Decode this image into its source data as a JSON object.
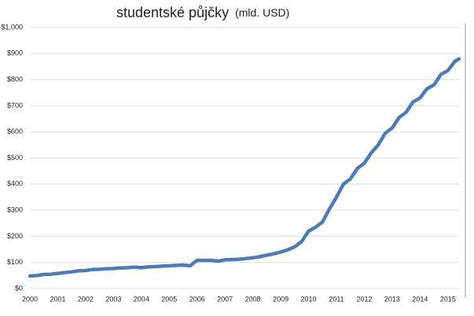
{
  "chart_data": {
    "type": "line",
    "title": "studentské půjčky",
    "subtitle": "(mld. USD)",
    "x": [
      2000,
      2000.25,
      2000.5,
      2000.75,
      2001,
      2001.25,
      2001.5,
      2001.75,
      2002,
      2002.25,
      2002.5,
      2002.75,
      2003,
      2003.25,
      2003.5,
      2003.75,
      2004,
      2004.25,
      2004.5,
      2004.75,
      2005,
      2005.25,
      2005.5,
      2005.75,
      2006,
      2006.25,
      2006.5,
      2006.75,
      2007,
      2007.25,
      2007.5,
      2007.75,
      2008,
      2008.25,
      2008.5,
      2008.75,
      2009,
      2009.25,
      2009.5,
      2009.75,
      2010,
      2010.25,
      2010.5,
      2010.75,
      2011,
      2011.25,
      2011.5,
      2011.75,
      2012,
      2012.25,
      2012.5,
      2012.75,
      2013,
      2013.25,
      2013.5,
      2013.75,
      2014,
      2014.25,
      2014.5,
      2014.75,
      2015,
      2015.25,
      2015.4
    ],
    "values": [
      48,
      50,
      54,
      55,
      58,
      61,
      64,
      68,
      69,
      73,
      74,
      76,
      77,
      79,
      80,
      82,
      80,
      83,
      84,
      86,
      87,
      89,
      90,
      87,
      108,
      108,
      108,
      105,
      110,
      111,
      112,
      115,
      118,
      122,
      128,
      133,
      140,
      148,
      160,
      180,
      220,
      235,
      255,
      305,
      350,
      400,
      420,
      460,
      480,
      520,
      550,
      595,
      615,
      655,
      675,
      715,
      730,
      765,
      780,
      820,
      835,
      870,
      880
    ],
    "color": "#4f7bb3",
    "xlim": [
      2000,
      2015.4
    ],
    "xticks": [
      2000,
      2001,
      2002,
      2003,
      2004,
      2005,
      2006,
      2007,
      2008,
      2009,
      2010,
      2011,
      2012,
      2013,
      2014,
      2015
    ],
    "ylim": [
      0,
      1000
    ],
    "yticks": [
      {
        "value": 0,
        "label": "$0"
      },
      {
        "value": 100,
        "label": "$100"
      },
      {
        "value": 200,
        "label": "$200"
      },
      {
        "value": 300,
        "label": "$300"
      },
      {
        "value": 400,
        "label": "$400"
      },
      {
        "value": 500,
        "label": "$500"
      },
      {
        "value": 600,
        "label": "$600"
      },
      {
        "value": 700,
        "label": "$700"
      },
      {
        "value": 800,
        "label": "$800"
      },
      {
        "value": 900,
        "label": "$900"
      },
      {
        "value": 1000,
        "label": "$1,000"
      }
    ],
    "grid": true
  }
}
